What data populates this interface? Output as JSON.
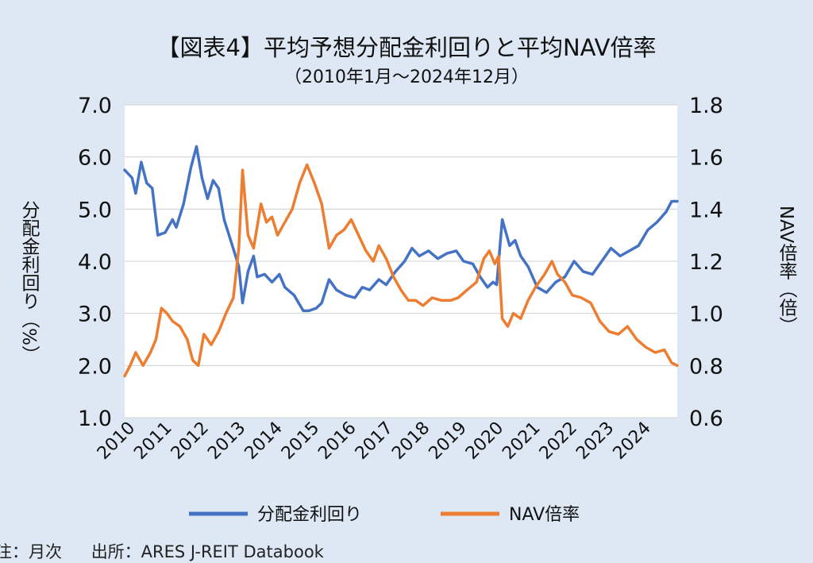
{
  "chart_data": {
    "type": "line",
    "title": "【図表4】平均予想分配金利回りと平均NAV倍率",
    "subtitle": "（2010年1月～2024年12月）",
    "ylabel_left": "分配金利回り（%）",
    "ylabel_right": "NAV倍率（倍）",
    "xlabel": "",
    "x_tick_labels": [
      "2010",
      "2011",
      "2012",
      "2013",
      "2014",
      "2015",
      "2016",
      "2017",
      "2018",
      "2019",
      "2020",
      "2021",
      "2022",
      "2023",
      "2024"
    ],
    "y_left": {
      "range": [
        1.0,
        7.0
      ],
      "ticks": [
        "1.0",
        "2.0",
        "3.0",
        "4.0",
        "5.0",
        "6.0",
        "7.0"
      ]
    },
    "y_right": {
      "range": [
        0.6,
        1.8
      ],
      "ticks": [
        "0.6",
        "0.8",
        "1.0",
        "1.2",
        "1.4",
        "1.6",
        "1.8"
      ]
    },
    "grid": "horizontal",
    "legend_position": "bottom",
    "series": [
      {
        "name": "分配金利回り",
        "axis": "left",
        "color": "#4472c4",
        "points": [
          [
            2010.0,
            5.75
          ],
          [
            2010.2,
            5.6
          ],
          [
            2010.3,
            5.3
          ],
          [
            2010.45,
            5.9
          ],
          [
            2010.6,
            5.5
          ],
          [
            2010.75,
            5.4
          ],
          [
            2010.9,
            4.5
          ],
          [
            2011.1,
            4.55
          ],
          [
            2011.3,
            4.8
          ],
          [
            2011.4,
            4.65
          ],
          [
            2011.6,
            5.1
          ],
          [
            2011.8,
            5.8
          ],
          [
            2011.95,
            6.2
          ],
          [
            2012.1,
            5.6
          ],
          [
            2012.25,
            5.2
          ],
          [
            2012.4,
            5.55
          ],
          [
            2012.55,
            5.4
          ],
          [
            2012.7,
            4.8
          ],
          [
            2012.9,
            4.35
          ],
          [
            2013.1,
            3.9
          ],
          [
            2013.2,
            3.2
          ],
          [
            2013.35,
            3.8
          ],
          [
            2013.5,
            4.1
          ],
          [
            2013.6,
            3.7
          ],
          [
            2013.8,
            3.75
          ],
          [
            2014.0,
            3.6
          ],
          [
            2014.2,
            3.75
          ],
          [
            2014.35,
            3.5
          ],
          [
            2014.6,
            3.35
          ],
          [
            2014.85,
            3.05
          ],
          [
            2015.0,
            3.05
          ],
          [
            2015.2,
            3.1
          ],
          [
            2015.35,
            3.2
          ],
          [
            2015.55,
            3.65
          ],
          [
            2015.75,
            3.45
          ],
          [
            2016.0,
            3.35
          ],
          [
            2016.25,
            3.3
          ],
          [
            2016.45,
            3.5
          ],
          [
            2016.65,
            3.45
          ],
          [
            2016.9,
            3.65
          ],
          [
            2017.1,
            3.55
          ],
          [
            2017.35,
            3.8
          ],
          [
            2017.6,
            4.0
          ],
          [
            2017.8,
            4.25
          ],
          [
            2018.0,
            4.1
          ],
          [
            2018.25,
            4.2
          ],
          [
            2018.5,
            4.05
          ],
          [
            2018.75,
            4.15
          ],
          [
            2019.0,
            4.2
          ],
          [
            2019.2,
            4.0
          ],
          [
            2019.45,
            3.95
          ],
          [
            2019.65,
            3.7
          ],
          [
            2019.85,
            3.5
          ],
          [
            2020.0,
            3.6
          ],
          [
            2020.1,
            3.55
          ],
          [
            2020.25,
            4.8
          ],
          [
            2020.45,
            4.3
          ],
          [
            2020.6,
            4.4
          ],
          [
            2020.75,
            4.1
          ],
          [
            2020.95,
            3.9
          ],
          [
            2021.2,
            3.5
          ],
          [
            2021.45,
            3.4
          ],
          [
            2021.7,
            3.6
          ],
          [
            2021.95,
            3.7
          ],
          [
            2022.2,
            4.0
          ],
          [
            2022.45,
            3.8
          ],
          [
            2022.7,
            3.75
          ],
          [
            2022.95,
            4.0
          ],
          [
            2023.2,
            4.25
          ],
          [
            2023.45,
            4.1
          ],
          [
            2023.7,
            4.2
          ],
          [
            2023.95,
            4.3
          ],
          [
            2024.2,
            4.6
          ],
          [
            2024.45,
            4.75
          ],
          [
            2024.7,
            4.95
          ],
          [
            2024.85,
            5.15
          ],
          [
            2025.0,
            5.15
          ]
        ]
      },
      {
        "name": "NAV倍率",
        "axis": "right",
        "color": "#ed7d31",
        "points": [
          [
            2010.0,
            0.76
          ],
          [
            2010.15,
            0.8
          ],
          [
            2010.3,
            0.85
          ],
          [
            2010.5,
            0.8
          ],
          [
            2010.7,
            0.85
          ],
          [
            2010.85,
            0.9
          ],
          [
            2011.0,
            1.02
          ],
          [
            2011.15,
            1.0
          ],
          [
            2011.3,
            0.97
          ],
          [
            2011.5,
            0.95
          ],
          [
            2011.7,
            0.9
          ],
          [
            2011.85,
            0.82
          ],
          [
            2012.0,
            0.8
          ],
          [
            2012.15,
            0.92
          ],
          [
            2012.35,
            0.88
          ],
          [
            2012.55,
            0.93
          ],
          [
            2012.75,
            1.0
          ],
          [
            2012.95,
            1.06
          ],
          [
            2013.1,
            1.25
          ],
          [
            2013.2,
            1.55
          ],
          [
            2013.35,
            1.3
          ],
          [
            2013.5,
            1.25
          ],
          [
            2013.7,
            1.42
          ],
          [
            2013.85,
            1.35
          ],
          [
            2014.0,
            1.37
          ],
          [
            2014.15,
            1.3
          ],
          [
            2014.35,
            1.35
          ],
          [
            2014.55,
            1.4
          ],
          [
            2014.75,
            1.5
          ],
          [
            2014.95,
            1.57
          ],
          [
            2015.15,
            1.5
          ],
          [
            2015.35,
            1.42
          ],
          [
            2015.55,
            1.25
          ],
          [
            2015.75,
            1.3
          ],
          [
            2015.95,
            1.32
          ],
          [
            2016.15,
            1.36
          ],
          [
            2016.35,
            1.3
          ],
          [
            2016.55,
            1.24
          ],
          [
            2016.75,
            1.2
          ],
          [
            2016.9,
            1.26
          ],
          [
            2017.1,
            1.21
          ],
          [
            2017.3,
            1.14
          ],
          [
            2017.5,
            1.09
          ],
          [
            2017.7,
            1.05
          ],
          [
            2017.9,
            1.05
          ],
          [
            2018.1,
            1.03
          ],
          [
            2018.35,
            1.06
          ],
          [
            2018.6,
            1.05
          ],
          [
            2018.85,
            1.05
          ],
          [
            2019.05,
            1.06
          ],
          [
            2019.3,
            1.09
          ],
          [
            2019.55,
            1.12
          ],
          [
            2019.75,
            1.21
          ],
          [
            2019.9,
            1.24
          ],
          [
            2020.05,
            1.19
          ],
          [
            2020.15,
            1.22
          ],
          [
            2020.25,
            0.98
          ],
          [
            2020.4,
            0.95
          ],
          [
            2020.55,
            1.0
          ],
          [
            2020.75,
            0.98
          ],
          [
            2020.95,
            1.05
          ],
          [
            2021.15,
            1.1
          ],
          [
            2021.4,
            1.15
          ],
          [
            2021.6,
            1.2
          ],
          [
            2021.75,
            1.15
          ],
          [
            2021.95,
            1.12
          ],
          [
            2022.15,
            1.07
          ],
          [
            2022.4,
            1.06
          ],
          [
            2022.65,
            1.04
          ],
          [
            2022.9,
            0.97
          ],
          [
            2023.15,
            0.93
          ],
          [
            2023.4,
            0.92
          ],
          [
            2023.65,
            0.95
          ],
          [
            2023.9,
            0.9
          ],
          [
            2024.15,
            0.87
          ],
          [
            2024.4,
            0.85
          ],
          [
            2024.65,
            0.86
          ],
          [
            2024.85,
            0.81
          ],
          [
            2025.0,
            0.8
          ]
        ]
      }
    ]
  },
  "footer": {
    "note": "注：月次",
    "source": "出所：ARES J-REIT Databook"
  }
}
